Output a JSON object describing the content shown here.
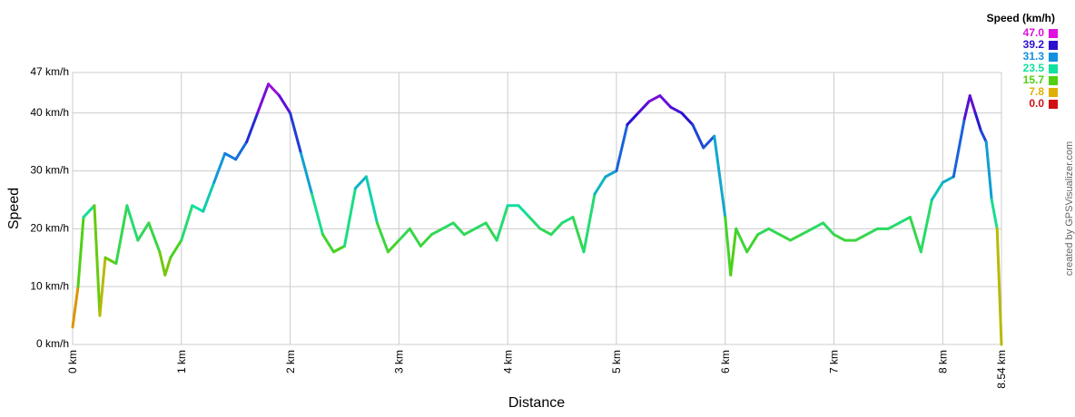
{
  "chart_data": {
    "type": "line",
    "xlabel": "Distance",
    "ylabel": "Speed",
    "credit": "created by GPSVisualizer.com",
    "xlim": [
      0,
      8.54
    ],
    "ylim": [
      0,
      47
    ],
    "grid": true,
    "xticks": [
      {
        "value": 0,
        "label": "0 km"
      },
      {
        "value": 1,
        "label": "1 km"
      },
      {
        "value": 2,
        "label": "2 km"
      },
      {
        "value": 3,
        "label": "3 km"
      },
      {
        "value": 4,
        "label": "4 km"
      },
      {
        "value": 5,
        "label": "5 km"
      },
      {
        "value": 6,
        "label": "6 km"
      },
      {
        "value": 7,
        "label": "7 km"
      },
      {
        "value": 8,
        "label": "8 km"
      },
      {
        "value": 8.54,
        "label": "8.54 km"
      }
    ],
    "yticks": [
      {
        "value": 0,
        "label": "0 km/h"
      },
      {
        "value": 10,
        "label": "10 km/h"
      },
      {
        "value": 20,
        "label": "20 km/h"
      },
      {
        "value": 30,
        "label": "30 km/h"
      },
      {
        "value": 40,
        "label": "40 km/h"
      },
      {
        "value": 47,
        "label": "47 km/h"
      }
    ],
    "legend": {
      "title": "Speed (km/h)",
      "items": [
        {
          "value": 47,
          "label": "47.0",
          "color": "#e010e0"
        },
        {
          "value": 39.2,
          "label": "39.2",
          "color": "#2a10d0"
        },
        {
          "value": 31.3,
          "label": "31.3",
          "color": "#1090e0"
        },
        {
          "value": 23.5,
          "label": "23.5",
          "color": "#10e0a0"
        },
        {
          "value": 15.7,
          "label": "15.7",
          "color": "#50d010"
        },
        {
          "value": 7.8,
          "label": "7.8",
          "color": "#e0b000"
        },
        {
          "value": 0,
          "label": "0.0",
          "color": "#d01010"
        }
      ]
    },
    "x": [
      0,
      0.05,
      0.1,
      0.2,
      0.25,
      0.3,
      0.4,
      0.5,
      0.6,
      0.7,
      0.8,
      0.85,
      0.9,
      1.0,
      1.1,
      1.2,
      1.3,
      1.4,
      1.5,
      1.6,
      1.7,
      1.8,
      1.9,
      2.0,
      2.1,
      2.2,
      2.3,
      2.4,
      2.5,
      2.6,
      2.7,
      2.8,
      2.9,
      3.0,
      3.1,
      3.2,
      3.3,
      3.4,
      3.5,
      3.6,
      3.7,
      3.8,
      3.9,
      4.0,
      4.1,
      4.2,
      4.3,
      4.4,
      4.5,
      4.6,
      4.7,
      4.8,
      4.9,
      5.0,
      5.1,
      5.2,
      5.3,
      5.4,
      5.5,
      5.6,
      5.7,
      5.8,
      5.9,
      6.0,
      6.05,
      6.1,
      6.2,
      6.3,
      6.4,
      6.5,
      6.6,
      6.7,
      6.8,
      6.9,
      7.0,
      7.1,
      7.2,
      7.3,
      7.4,
      7.5,
      7.6,
      7.7,
      7.8,
      7.9,
      8.0,
      8.1,
      8.2,
      8.25,
      8.3,
      8.35,
      8.4,
      8.45,
      8.5,
      8.54
    ],
    "values": [
      3,
      10,
      22,
      24,
      5,
      15,
      14,
      24,
      18,
      21,
      16,
      12,
      15,
      18,
      24,
      23,
      28,
      33,
      32,
      35,
      40,
      45,
      43,
      40,
      33,
      26,
      19,
      16,
      17,
      27,
      29,
      21,
      16,
      18,
      20,
      17,
      19,
      20,
      21,
      19,
      20,
      21,
      18,
      24,
      24,
      22,
      20,
      19,
      21,
      22,
      16,
      26,
      29,
      30,
      38,
      40,
      42,
      43,
      41,
      40,
      38,
      34,
      36,
      22,
      12,
      20,
      16,
      19,
      20,
      19,
      18,
      19,
      20,
      21,
      19,
      18,
      18,
      19,
      20,
      20,
      21,
      22,
      16,
      25,
      28,
      29,
      39,
      43,
      40,
      37,
      35,
      25,
      20,
      0
    ]
  }
}
